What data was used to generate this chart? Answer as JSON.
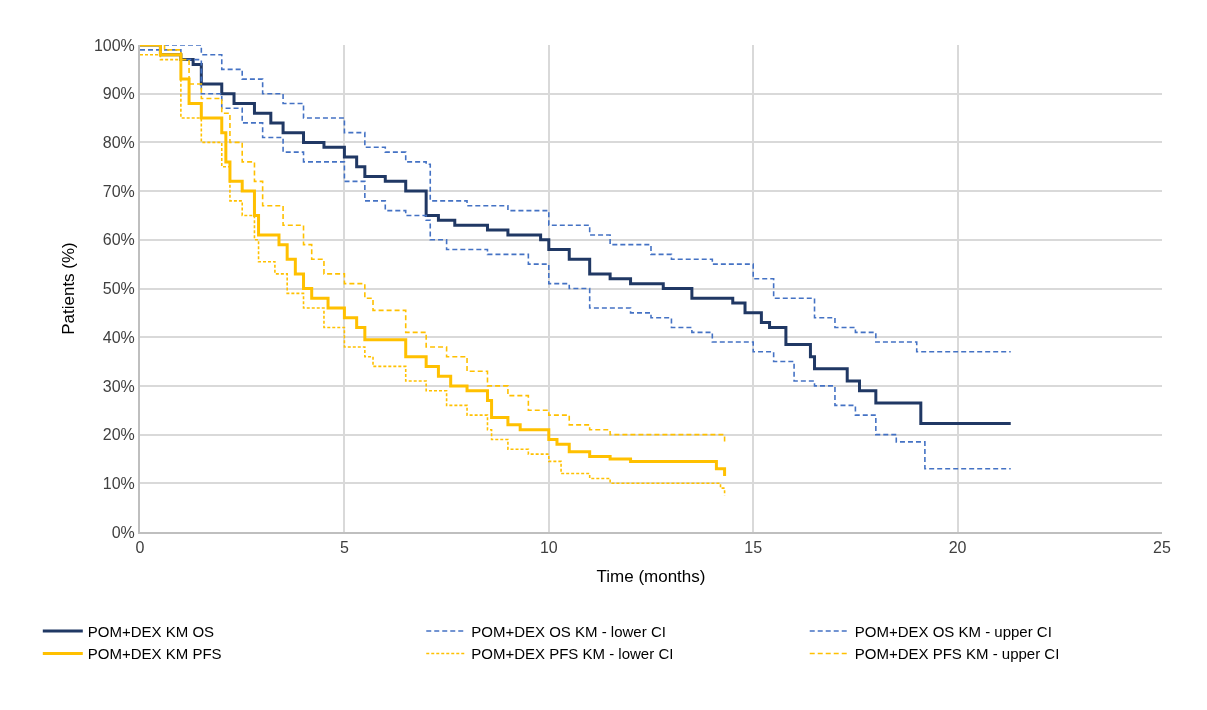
{
  "chart_data": {
    "type": "step",
    "xlabel": "Time (months)",
    "ylabel": "Patients (%)",
    "xlim": [
      0,
      25
    ],
    "xticks": [
      0,
      5,
      10,
      15,
      20,
      25
    ],
    "ylim": [
      0,
      100
    ],
    "yticks": [
      {
        "value": 0,
        "label": "0%"
      },
      {
        "value": 10,
        "label": "10%"
      },
      {
        "value": 20,
        "label": "20%"
      },
      {
        "value": 30,
        "label": "30%"
      },
      {
        "value": 40,
        "label": "40%"
      },
      {
        "value": 50,
        "label": "50%"
      },
      {
        "value": 60,
        "label": "60%"
      },
      {
        "value": 70,
        "label": "70%"
      },
      {
        "value": 80,
        "label": "80%"
      },
      {
        "value": 90,
        "label": "90%"
      },
      {
        "value": 100,
        "label": "100%"
      }
    ],
    "grid": true,
    "legend": "bottom",
    "marker": "none",
    "series": [
      {
        "name": "POM+DEX KM OS",
        "color": "#203864",
        "line_style": "solid",
        "x": [
          0,
          0.5,
          1,
          1.3,
          1.5,
          2,
          2.3,
          2.8,
          3.2,
          3.5,
          4,
          4.5,
          5,
          5.3,
          5.5,
          6,
          6.5,
          7,
          7.3,
          7.7,
          8.5,
          9,
          9.8,
          10,
          10.5,
          11,
          11.5,
          12,
          12.8,
          13.5,
          14.5,
          14.8,
          15.2,
          15.4,
          15.8,
          16.4,
          16.5,
          17.3,
          17.6,
          18,
          19.1,
          21.3
        ],
        "values": [
          100,
          98,
          97,
          96,
          92,
          90,
          88,
          86,
          84,
          82,
          80,
          79,
          77,
          75,
          73,
          72,
          70,
          65,
          64,
          63,
          62,
          61,
          60,
          58,
          56,
          53,
          52,
          51,
          50,
          48,
          47,
          45,
          43,
          42,
          38.5,
          36,
          33.5,
          31,
          29,
          26.5,
          22.3,
          22.3
        ]
      },
      {
        "name": "POM+DEX OS KM - lower CI",
        "color": "#4472c4",
        "line_style": "dashed",
        "x": [
          0,
          1,
          1.5,
          2,
          2.5,
          3,
          3.5,
          4,
          5,
          5.5,
          6,
          6.5,
          7,
          7.1,
          7.5,
          8.5,
          9.5,
          10,
          10.5,
          11,
          12,
          12.5,
          13,
          13.5,
          14,
          15,
          15.5,
          16,
          16.5,
          17,
          17.5,
          18,
          18.5,
          19.2,
          21.3
        ],
        "values": [
          99,
          97,
          90,
          87,
          84,
          81,
          78,
          76,
          72,
          68,
          66,
          65,
          64,
          60,
          58,
          57,
          55,
          51,
          50,
          46,
          45,
          44,
          42,
          41,
          39,
          37,
          35,
          31,
          30,
          26,
          24,
          20,
          18.5,
          13,
          13
        ]
      },
      {
        "name": "POM+DEX OS KM - upper CI",
        "color": "#4472c4",
        "line_style": "dashed",
        "x": [
          0,
          1.5,
          2,
          2.5,
          3,
          3.5,
          4,
          5,
          5.5,
          6,
          6.5,
          7,
          7.1,
          8,
          9,
          10,
          11,
          11.5,
          12.5,
          13,
          14,
          15,
          15.5,
          16.5,
          17,
          17.5,
          18,
          19,
          21.3
        ],
        "values": [
          100,
          98,
          95,
          93,
          90,
          88,
          85,
          82,
          79,
          78,
          76,
          75.5,
          68,
          67,
          66,
          63,
          61,
          59,
          57,
          56,
          55,
          52,
          48,
          44,
          42,
          41,
          39,
          37,
          37
        ]
      },
      {
        "name": "POM+DEX KM PFS",
        "color": "#ffc000",
        "line_style": "solid",
        "x": [
          0,
          0.5,
          1,
          1.2,
          1.5,
          2,
          2.1,
          2.2,
          2.5,
          2.8,
          2.9,
          3.4,
          3.6,
          3.8,
          4,
          4.2,
          4.6,
          5,
          5.3,
          5.5,
          6.5,
          7,
          7.3,
          7.6,
          8,
          8.5,
          8.6,
          9,
          9.3,
          10,
          10.2,
          10.5,
          11,
          11.5,
          12,
          14,
          14.1,
          14.3
        ],
        "values": [
          100,
          98,
          93,
          88,
          85,
          82,
          76,
          72,
          70,
          65,
          61,
          59,
          56,
          53,
          50,
          48,
          46,
          44,
          42,
          39.5,
          36,
          34,
          32,
          30,
          29,
          27,
          23.5,
          22,
          21,
          19,
          18,
          16.5,
          15.5,
          15,
          14.5,
          14.5,
          13,
          11.5
        ]
      },
      {
        "name": "POM+DEX PFS KM - lower CI",
        "color": "#ffc000",
        "line_style": "dotted",
        "x": [
          0,
          0.5,
          1,
          1.5,
          2,
          2.2,
          2.5,
          2.8,
          2.9,
          3.3,
          3.6,
          4,
          4.5,
          5,
          5.5,
          5.7,
          6.5,
          7,
          7.5,
          8,
          8.5,
          8.6,
          9,
          9.5,
          10,
          10.3,
          11,
          11.5,
          14,
          14.2,
          14.3
        ],
        "values": [
          98,
          97,
          85,
          80,
          75,
          68,
          65,
          60,
          55.5,
          53,
          49,
          46,
          42,
          38,
          36,
          34,
          31,
          29,
          26,
          24,
          21,
          19,
          17,
          16,
          14.5,
          12,
          11,
          10,
          10,
          9,
          7.5
        ]
      },
      {
        "name": "POM+DEX PFS KM - upper CI",
        "color": "#ffc000",
        "line_style": "dashed",
        "x": [
          0,
          0.6,
          1,
          1.2,
          1.5,
          2,
          2.2,
          2.5,
          2.8,
          3,
          3.5,
          4,
          4.2,
          4.5,
          5,
          5.5,
          5.7,
          6.5,
          7,
          7.5,
          8,
          8.5,
          9,
          9.5,
          10,
          10.5,
          11,
          11.5,
          14,
          14.3
        ],
        "values": [
          100,
          99,
          97,
          92,
          89,
          86,
          80,
          76,
          72,
          67,
          63,
          59,
          56,
          53,
          51,
          48,
          45.5,
          41,
          38,
          36,
          33,
          30,
          28,
          25,
          24,
          22,
          21,
          20,
          20,
          18
        ]
      }
    ]
  }
}
